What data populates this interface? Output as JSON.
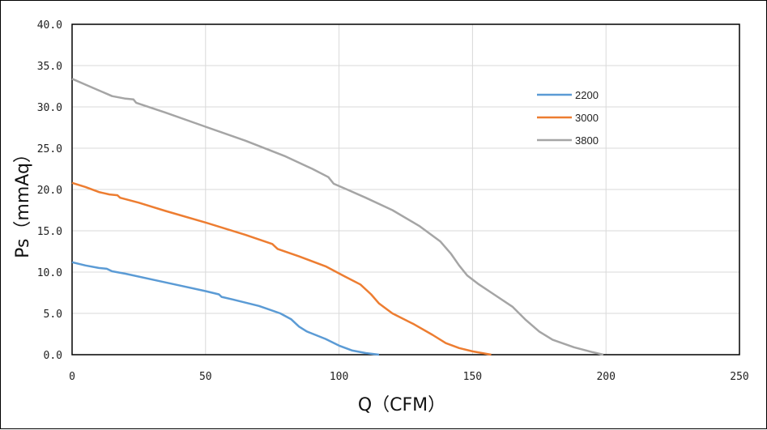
{
  "chart_data": {
    "type": "line",
    "title": "",
    "xlabel": "Q（CFM）",
    "ylabel": "Ps（mmAq）",
    "xlim": [
      0,
      250
    ],
    "ylim": [
      0,
      40
    ],
    "x_ticks": [
      "0",
      "50",
      "100",
      "150",
      "200",
      "250"
    ],
    "y_ticks": [
      "0.0",
      "5.0",
      "10.0",
      "15.0",
      "20.0",
      "25.0",
      "30.0",
      "35.0",
      "40.0"
    ],
    "grid": true,
    "legend_position": "right",
    "series": [
      {
        "name": "2200",
        "color": "#5B9BD5",
        "points": [
          [
            0,
            11.2
          ],
          [
            5,
            10.8
          ],
          [
            10,
            10.5
          ],
          [
            13,
            10.4
          ],
          [
            15,
            10.1
          ],
          [
            20,
            9.8
          ],
          [
            30,
            9.1
          ],
          [
            40,
            8.4
          ],
          [
            50,
            7.7
          ],
          [
            55,
            7.3
          ],
          [
            56,
            7.0
          ],
          [
            60,
            6.7
          ],
          [
            70,
            5.9
          ],
          [
            78,
            5.0
          ],
          [
            82,
            4.3
          ],
          [
            85,
            3.4
          ],
          [
            88,
            2.8
          ],
          [
            95,
            1.9
          ],
          [
            100,
            1.1
          ],
          [
            105,
            0.5
          ],
          [
            110,
            0.2
          ],
          [
            115,
            0.0
          ]
        ]
      },
      {
        "name": "3000",
        "color": "#ED7D31",
        "points": [
          [
            0,
            20.8
          ],
          [
            5,
            20.3
          ],
          [
            10,
            19.7
          ],
          [
            14,
            19.4
          ],
          [
            17,
            19.3
          ],
          [
            18,
            19.0
          ],
          [
            25,
            18.4
          ],
          [
            35,
            17.4
          ],
          [
            50,
            16.0
          ],
          [
            65,
            14.5
          ],
          [
            75,
            13.4
          ],
          [
            77,
            12.8
          ],
          [
            85,
            11.9
          ],
          [
            95,
            10.7
          ],
          [
            102,
            9.5
          ],
          [
            108,
            8.5
          ],
          [
            112,
            7.3
          ],
          [
            115,
            6.2
          ],
          [
            120,
            5.0
          ],
          [
            128,
            3.7
          ],
          [
            135,
            2.4
          ],
          [
            140,
            1.4
          ],
          [
            145,
            0.8
          ],
          [
            150,
            0.4
          ],
          [
            157,
            0.0
          ]
        ]
      },
      {
        "name": "3800",
        "color": "#A5A5A5",
        "points": [
          [
            0,
            33.4
          ],
          [
            5,
            32.7
          ],
          [
            10,
            32.0
          ],
          [
            15,
            31.3
          ],
          [
            20,
            31.0
          ],
          [
            23,
            30.9
          ],
          [
            24,
            30.5
          ],
          [
            35,
            29.3
          ],
          [
            50,
            27.6
          ],
          [
            65,
            25.9
          ],
          [
            80,
            24.0
          ],
          [
            90,
            22.5
          ],
          [
            96,
            21.5
          ],
          [
            98,
            20.7
          ],
          [
            103,
            20.0
          ],
          [
            110,
            19.0
          ],
          [
            120,
            17.5
          ],
          [
            130,
            15.6
          ],
          [
            138,
            13.7
          ],
          [
            142,
            12.2
          ],
          [
            145,
            10.8
          ],
          [
            148,
            9.6
          ],
          [
            152,
            8.6
          ],
          [
            158,
            7.3
          ],
          [
            165,
            5.8
          ],
          [
            170,
            4.2
          ],
          [
            175,
            2.8
          ],
          [
            180,
            1.8
          ],
          [
            188,
            0.9
          ],
          [
            195,
            0.3
          ],
          [
            199,
            0.0
          ]
        ]
      }
    ]
  }
}
